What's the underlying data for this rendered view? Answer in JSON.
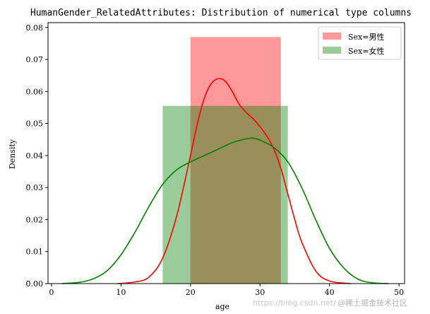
{
  "chart_data": {
    "type": "bar",
    "title": "HumanGender_RelatedAttributes: Distribution of numerical type columns",
    "xlabel": "age",
    "ylabel": "Density",
    "xlim": [
      -0.5,
      50.8
    ],
    "ylim": [
      0,
      0.0815
    ],
    "x_ticks": [
      0,
      10,
      20,
      30,
      40,
      50
    ],
    "y_ticks": [
      0.0,
      0.01,
      0.02,
      0.03,
      0.04,
      0.05,
      0.06,
      0.07,
      0.08
    ],
    "grid": false,
    "legend_position": "top-right",
    "histograms": [
      {
        "name": "Sex=男性",
        "color": "#ff0000",
        "opacity": 0.4,
        "bin_start": 20,
        "bin_end": 33,
        "density": 0.077
      },
      {
        "name": "Sex=女性",
        "color": "#008000",
        "opacity": 0.4,
        "bin_start": 16,
        "bin_end": 34,
        "density": 0.0555
      }
    ],
    "series": [
      {
        "name": "Sex=男性",
        "type": "line",
        "color": "#ff0000",
        "x": [
          9.5,
          12,
          14,
          16,
          18,
          20,
          21,
          22,
          23,
          24,
          25,
          26,
          27,
          28,
          29,
          30,
          31,
          32,
          33,
          34,
          35,
          36,
          38,
          40,
          43
        ],
        "y": [
          0.0,
          0.0005,
          0.002,
          0.008,
          0.021,
          0.04,
          0.05,
          0.058,
          0.0625,
          0.064,
          0.0632,
          0.06,
          0.056,
          0.0535,
          0.0515,
          0.049,
          0.046,
          0.042,
          0.036,
          0.028,
          0.02,
          0.013,
          0.004,
          0.0008,
          0.0
        ]
      },
      {
        "name": "Sex=女性",
        "type": "line",
        "color": "#008000",
        "x": [
          1.5,
          4,
          6,
          8,
          10,
          12,
          14,
          16,
          18,
          20,
          22,
          24,
          26,
          28,
          29,
          30,
          32,
          34,
          36,
          38,
          40,
          42,
          44,
          46,
          48.5
        ],
        "y": [
          0.0,
          0.0004,
          0.0015,
          0.004,
          0.009,
          0.016,
          0.024,
          0.031,
          0.0355,
          0.038,
          0.04,
          0.042,
          0.044,
          0.0452,
          0.0454,
          0.0448,
          0.0425,
          0.038,
          0.03,
          0.02,
          0.011,
          0.005,
          0.0015,
          0.0003,
          0.0
        ]
      }
    ]
  },
  "watermark": {
    "url_text": "https://blog.csdn.net/",
    "brand_text": "@稀土掘金技术社区"
  }
}
